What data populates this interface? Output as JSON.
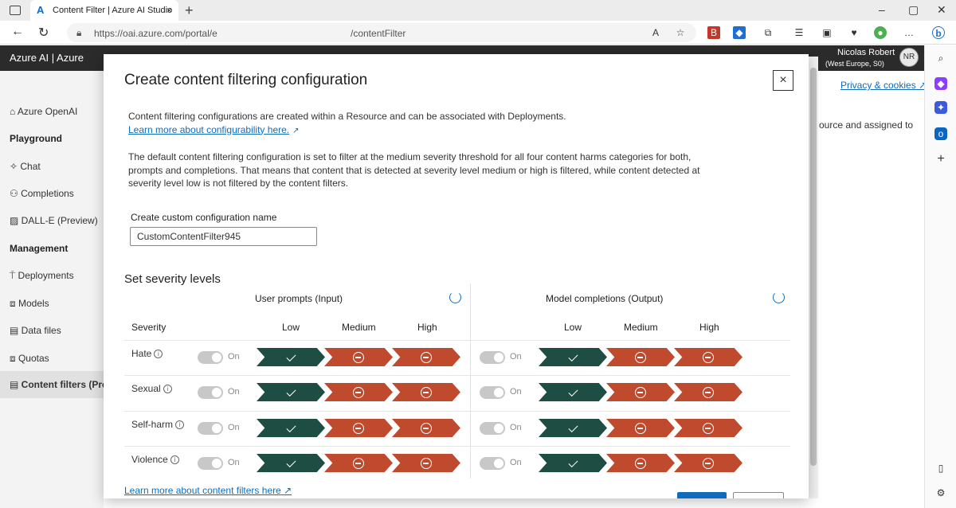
{
  "browser": {
    "tab_title": "Content Filter | Azure AI Studio",
    "url_left": "https://oai.azure.com/portal/e",
    "url_right": "/contentFilter",
    "new_tab": "+",
    "close_tab": "×"
  },
  "appbar": {
    "title": "Azure AI  |  Azure",
    "user_name": "Nicolas Robert",
    "user_sub": "(West Europe, S0)",
    "avatar_initials": "NR"
  },
  "sidebar": {
    "items": [
      {
        "label": "Azure OpenAI",
        "icon": "home-icon"
      },
      {
        "label": "Playground",
        "type": "heading"
      },
      {
        "label": "Chat",
        "icon": "chat-icon"
      },
      {
        "label": "Completions",
        "icon": "completions-icon"
      },
      {
        "label": "DALL-E (Preview)",
        "icon": "image-icon"
      },
      {
        "label": "Management",
        "type": "heading"
      },
      {
        "label": "Deployments",
        "icon": "deployments-icon"
      },
      {
        "label": "Models",
        "icon": "models-icon"
      },
      {
        "label": "Data files",
        "icon": "file-icon"
      },
      {
        "label": "Quotas",
        "icon": "quota-icon"
      },
      {
        "label": "Content filters (Prev",
        "icon": "filter-icon",
        "active": true
      }
    ]
  },
  "background": {
    "privacy_link": "Privacy & cookies",
    "partial_text": "ource and assigned to"
  },
  "dialog": {
    "title": "Create content filtering configuration",
    "close": "×",
    "intro": "Content filtering configurations are created within a Resource and can be associated with Deployments.",
    "intro_link": "Learn more about configurability here.",
    "default_text": "The default content filtering configuration is set to filter at the medium severity threshold for all four content harms categories for both, prompts and completions. That means that content that is detected at severity level medium or high is filtered, while content detected at severity level low is not filtered by the content filters.",
    "name_label": "Create custom configuration name",
    "name_value": "CustomContentFilter945",
    "severity_title": "Set severity levels",
    "input_title": "User prompts (Input)",
    "output_title": "Model completions (Output)",
    "severity_header": "Severity",
    "levels": [
      "Low",
      "Medium",
      "High"
    ],
    "toggle_label": "On",
    "categories": [
      "Hate",
      "Sexual",
      "Self-harm",
      "Violence"
    ],
    "footer_link": "Learn more about content filters here"
  },
  "colors": {
    "low_allowed": "#1d4d43",
    "filtered": "#c04a2e",
    "link": "#0f6cbd",
    "appbar": "#2b2b2b"
  }
}
